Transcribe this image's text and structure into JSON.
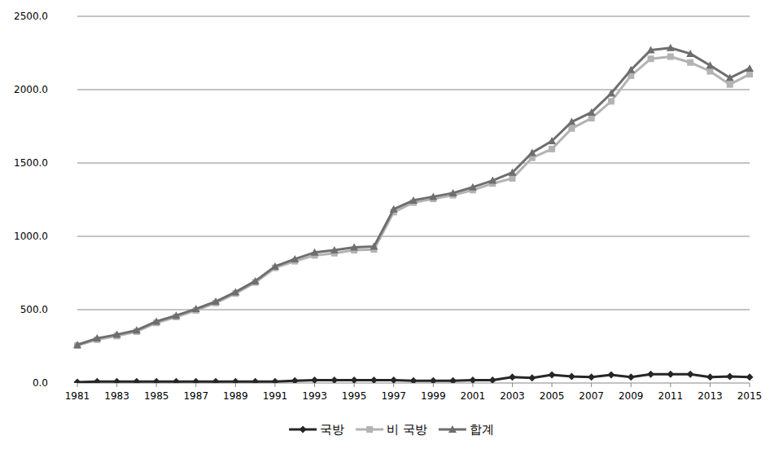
{
  "chart_data": {
    "type": "line",
    "x": [
      1981,
      1982,
      1983,
      1984,
      1985,
      1986,
      1987,
      1988,
      1989,
      1990,
      1991,
      1992,
      1993,
      1994,
      1995,
      1996,
      1997,
      1998,
      1999,
      2000,
      2001,
      2002,
      2003,
      2004,
      2005,
      2006,
      2007,
      2008,
      2009,
      2010,
      2011,
      2012,
      2013,
      2014,
      2015
    ],
    "xlim": [
      1981,
      2015
    ],
    "xticks": [
      1981,
      1983,
      1985,
      1987,
      1989,
      1991,
      1993,
      1995,
      1997,
      1999,
      2001,
      2003,
      2005,
      2007,
      2009,
      2011,
      2013,
      2015
    ],
    "ylim": [
      0,
      2500
    ],
    "yticks": [
      {
        "value": 0,
        "label": "0.0"
      },
      {
        "value": 500,
        "label": "500.0"
      },
      {
        "value": 1000,
        "label": "1000.0"
      },
      {
        "value": 1500,
        "label": "1500.0"
      },
      {
        "value": 2000,
        "label": "2000.0"
      },
      {
        "value": 2500,
        "label": "2500.0"
      }
    ],
    "grid": true,
    "legend": "bottom",
    "series": [
      {
        "name": "국방",
        "color": "#262626",
        "marker": "diamond",
        "values": [
          5,
          10,
          10,
          10,
          10,
          10,
          10,
          10,
          10,
          10,
          10,
          15,
          20,
          20,
          20,
          20,
          20,
          15,
          15,
          15,
          20,
          20,
          40,
          35,
          55,
          45,
          40,
          55,
          40,
          60,
          60,
          60,
          40,
          45,
          40
        ]
      },
      {
        "name": "비 국방",
        "color": "#b3b3b3",
        "marker": "square",
        "values": [
          255,
          295,
          320,
          350,
          410,
          450,
          495,
          545,
          610,
          685,
          785,
          830,
          870,
          885,
          905,
          910,
          1165,
          1230,
          1255,
          1280,
          1315,
          1360,
          1395,
          1535,
          1595,
          1735,
          1805,
          1920,
          2095,
          2210,
          2225,
          2185,
          2125,
          2035,
          2105
        ]
      },
      {
        "name": "합계",
        "color": "#6e6e6e",
        "marker": "triangle",
        "values": [
          260,
          305,
          330,
          360,
          420,
          460,
          505,
          555,
          620,
          695,
          795,
          845,
          890,
          905,
          925,
          930,
          1185,
          1245,
          1270,
          1295,
          1335,
          1380,
          1435,
          1570,
          1650,
          1780,
          1845,
          1975,
          2135,
          2270,
          2285,
          2245,
          2165,
          2080,
          2145
        ]
      }
    ]
  }
}
